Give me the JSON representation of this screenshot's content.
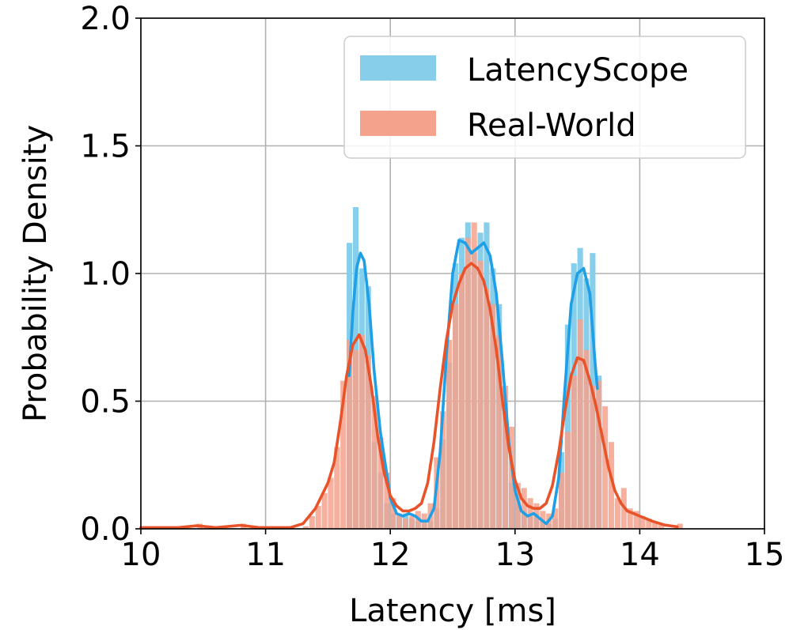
{
  "chart_data": {
    "type": "bar",
    "xlabel": "Latency [ms]",
    "ylabel": "Probability Density",
    "xlim": [
      10,
      15
    ],
    "ylim": [
      0,
      2.0
    ],
    "x_ticks": [
      "10",
      "11",
      "12",
      "13",
      "14",
      "15"
    ],
    "y_ticks": [
      "0.0",
      "0.5",
      "1.0",
      "1.5",
      "2.0"
    ],
    "grid": true,
    "legend_position": "top-right",
    "bin_width": 0.05,
    "series": [
      {
        "name": "LatencyScope",
        "color": "#87CEEB",
        "line_color": "#1E9FE6",
        "hist": [
          [
            11.65,
            1.12
          ],
          [
            11.7,
            1.26
          ],
          [
            11.75,
            1.02
          ],
          [
            11.8,
            0.95
          ],
          [
            11.85,
            0.34
          ],
          [
            11.9,
            0.22
          ],
          [
            11.95,
            0.1
          ],
          [
            12.0,
            0.06
          ],
          [
            12.05,
            0.05
          ],
          [
            12.1,
            0.06
          ],
          [
            12.15,
            0.04
          ],
          [
            12.2,
            0.03
          ],
          [
            12.25,
            0.02
          ],
          [
            12.3,
            0.03
          ],
          [
            12.35,
            0.08
          ],
          [
            12.4,
            0.35
          ],
          [
            12.45,
            0.65
          ],
          [
            12.5,
            1.04
          ],
          [
            12.55,
            1.14
          ],
          [
            12.6,
            1.2
          ],
          [
            12.65,
            1.08
          ],
          [
            12.7,
            1.16
          ],
          [
            12.75,
            1.2
          ],
          [
            12.8,
            1.02
          ],
          [
            12.85,
            0.88
          ],
          [
            12.9,
            0.45
          ],
          [
            12.95,
            0.18
          ],
          [
            13.0,
            0.1
          ],
          [
            13.05,
            0.07
          ],
          [
            13.1,
            0.05
          ],
          [
            13.15,
            0.06
          ],
          [
            13.2,
            0.03
          ],
          [
            13.25,
            0.02
          ],
          [
            13.3,
            0.04
          ],
          [
            13.35,
            0.3
          ],
          [
            13.4,
            0.8
          ],
          [
            13.45,
            1.04
          ],
          [
            13.5,
            1.1
          ],
          [
            13.55,
            0.98
          ],
          [
            13.6,
            1.08
          ],
          [
            13.65,
            0.6
          ]
        ],
        "kde": [
          [
            11.67,
            0.6
          ],
          [
            11.7,
            0.85
          ],
          [
            11.73,
            1.02
          ],
          [
            11.76,
            1.08
          ],
          [
            11.79,
            1.05
          ],
          [
            11.83,
            0.88
          ],
          [
            11.87,
            0.62
          ],
          [
            11.92,
            0.38
          ],
          [
            11.97,
            0.22
          ],
          [
            12.0,
            0.12
          ],
          [
            12.05,
            0.06
          ],
          [
            12.1,
            0.05
          ],
          [
            12.15,
            0.06
          ],
          [
            12.2,
            0.05
          ],
          [
            12.25,
            0.03
          ],
          [
            12.3,
            0.03
          ],
          [
            12.35,
            0.08
          ],
          [
            12.4,
            0.3
          ],
          [
            12.45,
            0.68
          ],
          [
            12.5,
            1.0
          ],
          [
            12.55,
            1.13
          ],
          [
            12.6,
            1.12
          ],
          [
            12.65,
            1.08
          ],
          [
            12.7,
            1.1
          ],
          [
            12.75,
            1.12
          ],
          [
            12.8,
            1.07
          ],
          [
            12.85,
            0.92
          ],
          [
            12.9,
            0.65
          ],
          [
            12.95,
            0.34
          ],
          [
            13.0,
            0.15
          ],
          [
            13.05,
            0.07
          ],
          [
            13.1,
            0.05
          ],
          [
            13.15,
            0.06
          ],
          [
            13.2,
            0.04
          ],
          [
            13.25,
            0.02
          ],
          [
            13.3,
            0.05
          ],
          [
            13.35,
            0.2
          ],
          [
            13.4,
            0.55
          ],
          [
            13.45,
            0.88
          ],
          [
            13.5,
            1.0
          ],
          [
            13.55,
            1.02
          ],
          [
            13.6,
            0.92
          ],
          [
            13.64,
            0.66
          ],
          [
            13.66,
            0.55
          ]
        ]
      },
      {
        "name": "Real-World",
        "color": "#F4A28C",
        "line_color": "#E8532A",
        "hist": [
          [
            10.45,
            0.02
          ],
          [
            10.8,
            0.02
          ],
          [
            11.3,
            0.01
          ],
          [
            11.35,
            0.05
          ],
          [
            11.4,
            0.09
          ],
          [
            11.45,
            0.14
          ],
          [
            11.5,
            0.2
          ],
          [
            11.55,
            0.32
          ],
          [
            11.6,
            0.58
          ],
          [
            11.65,
            0.74
          ],
          [
            11.7,
            0.7
          ],
          [
            11.75,
            0.76
          ],
          [
            11.8,
            0.68
          ],
          [
            11.85,
            0.52
          ],
          [
            11.9,
            0.36
          ],
          [
            11.95,
            0.22
          ],
          [
            12.0,
            0.12
          ],
          [
            12.05,
            0.06
          ],
          [
            12.1,
            0.04
          ],
          [
            12.15,
            0.05
          ],
          [
            12.2,
            0.07
          ],
          [
            12.25,
            0.06
          ],
          [
            12.3,
            0.1
          ],
          [
            12.35,
            0.28
          ],
          [
            12.4,
            0.46
          ],
          [
            12.45,
            0.74
          ],
          [
            12.5,
            0.88
          ],
          [
            12.55,
            1.0
          ],
          [
            12.6,
            1.14
          ],
          [
            12.65,
            1.2
          ],
          [
            12.7,
            1.05
          ],
          [
            12.75,
            0.94
          ],
          [
            12.8,
            0.88
          ],
          [
            12.85,
            0.76
          ],
          [
            12.9,
            0.56
          ],
          [
            12.95,
            0.4
          ],
          [
            13.0,
            0.18
          ],
          [
            13.05,
            0.16
          ],
          [
            13.1,
            0.12
          ],
          [
            13.15,
            0.1
          ],
          [
            13.2,
            0.07
          ],
          [
            13.25,
            0.06
          ],
          [
            13.3,
            0.08
          ],
          [
            13.35,
            0.22
          ],
          [
            13.4,
            0.38
          ],
          [
            13.45,
            0.6
          ],
          [
            13.5,
            0.82
          ],
          [
            13.55,
            0.7
          ],
          [
            13.6,
            0.56
          ],
          [
            13.65,
            0.58
          ],
          [
            13.7,
            0.48
          ],
          [
            13.75,
            0.34
          ],
          [
            13.8,
            0.12
          ],
          [
            13.85,
            0.16
          ],
          [
            13.9,
            0.08
          ],
          [
            13.95,
            0.07
          ],
          [
            14.0,
            0.05
          ],
          [
            14.05,
            0.04
          ],
          [
            14.1,
            0.03
          ],
          [
            14.15,
            0.02
          ],
          [
            14.3,
            0.02
          ]
        ],
        "kde": [
          [
            10.0,
            0.005
          ],
          [
            10.3,
            0.005
          ],
          [
            10.45,
            0.012
          ],
          [
            10.6,
            0.005
          ],
          [
            10.8,
            0.014
          ],
          [
            10.95,
            0.005
          ],
          [
            11.1,
            0.005
          ],
          [
            11.2,
            0.005
          ],
          [
            11.3,
            0.02
          ],
          [
            11.4,
            0.08
          ],
          [
            11.5,
            0.18
          ],
          [
            11.55,
            0.26
          ],
          [
            11.6,
            0.42
          ],
          [
            11.65,
            0.6
          ],
          [
            11.7,
            0.72
          ],
          [
            11.75,
            0.76
          ],
          [
            11.8,
            0.7
          ],
          [
            11.85,
            0.55
          ],
          [
            11.9,
            0.36
          ],
          [
            11.95,
            0.22
          ],
          [
            12.0,
            0.13
          ],
          [
            12.05,
            0.09
          ],
          [
            12.1,
            0.07
          ],
          [
            12.15,
            0.07
          ],
          [
            12.2,
            0.08
          ],
          [
            12.25,
            0.1
          ],
          [
            12.3,
            0.18
          ],
          [
            12.35,
            0.34
          ],
          [
            12.4,
            0.55
          ],
          [
            12.45,
            0.74
          ],
          [
            12.5,
            0.88
          ],
          [
            12.55,
            0.96
          ],
          [
            12.6,
            1.02
          ],
          [
            12.65,
            1.04
          ],
          [
            12.7,
            1.02
          ],
          [
            12.75,
            0.97
          ],
          [
            12.8,
            0.86
          ],
          [
            12.85,
            0.7
          ],
          [
            12.9,
            0.5
          ],
          [
            12.95,
            0.32
          ],
          [
            13.0,
            0.19
          ],
          [
            13.05,
            0.12
          ],
          [
            13.1,
            0.09
          ],
          [
            13.15,
            0.08
          ],
          [
            13.2,
            0.08
          ],
          [
            13.25,
            0.1
          ],
          [
            13.3,
            0.17
          ],
          [
            13.35,
            0.3
          ],
          [
            13.4,
            0.46
          ],
          [
            13.45,
            0.6
          ],
          [
            13.5,
            0.67
          ],
          [
            13.55,
            0.66
          ],
          [
            13.6,
            0.58
          ],
          [
            13.65,
            0.48
          ],
          [
            13.7,
            0.36
          ],
          [
            13.75,
            0.24
          ],
          [
            13.8,
            0.15
          ],
          [
            13.85,
            0.1
          ],
          [
            13.9,
            0.07
          ],
          [
            13.95,
            0.06
          ],
          [
            14.0,
            0.05
          ],
          [
            14.05,
            0.04
          ],
          [
            14.1,
            0.03
          ],
          [
            14.2,
            0.015
          ],
          [
            14.3,
            0.008
          ]
        ]
      }
    ]
  }
}
